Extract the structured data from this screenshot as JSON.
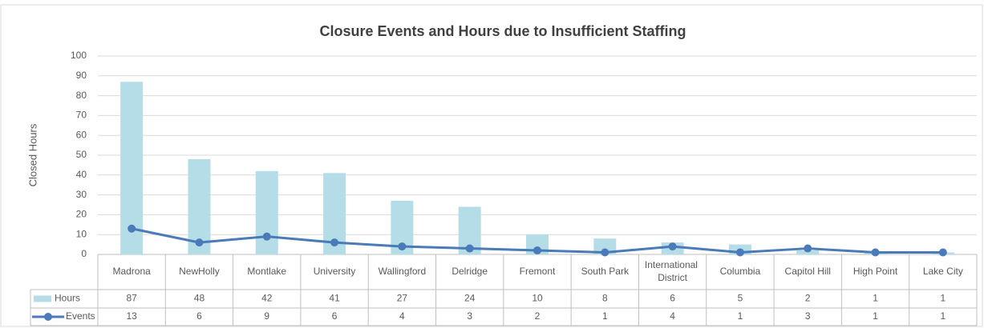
{
  "chart_data": {
    "type": "bar",
    "title": "Closure Events and Hours due to Insufficient Staffing",
    "y_label": "Closed Hours",
    "categories": [
      "Madrona",
      "NewHolly",
      "Montlake",
      "University",
      "Wallingford",
      "Delridge",
      "Fremont",
      "South Park",
      "International District",
      "Columbia",
      "Capitol Hill",
      "High Point",
      "Lake City"
    ],
    "series": [
      {
        "name": "Hours",
        "type": "bar",
        "color": "#b4dde8",
        "values": [
          87,
          48,
          42,
          41,
          27,
          24,
          10,
          8,
          6,
          5,
          2,
          1,
          1
        ]
      },
      {
        "name": "Events",
        "type": "line",
        "color": "#4a7ab8",
        "values": [
          13,
          6,
          9,
          6,
          4,
          3,
          2,
          1,
          4,
          1,
          3,
          1,
          1
        ]
      }
    ],
    "ylim": [
      0,
      100
    ],
    "yticks": [
      0,
      10,
      20,
      30,
      40,
      50,
      60,
      70,
      80,
      90,
      100
    ],
    "grid": true
  }
}
